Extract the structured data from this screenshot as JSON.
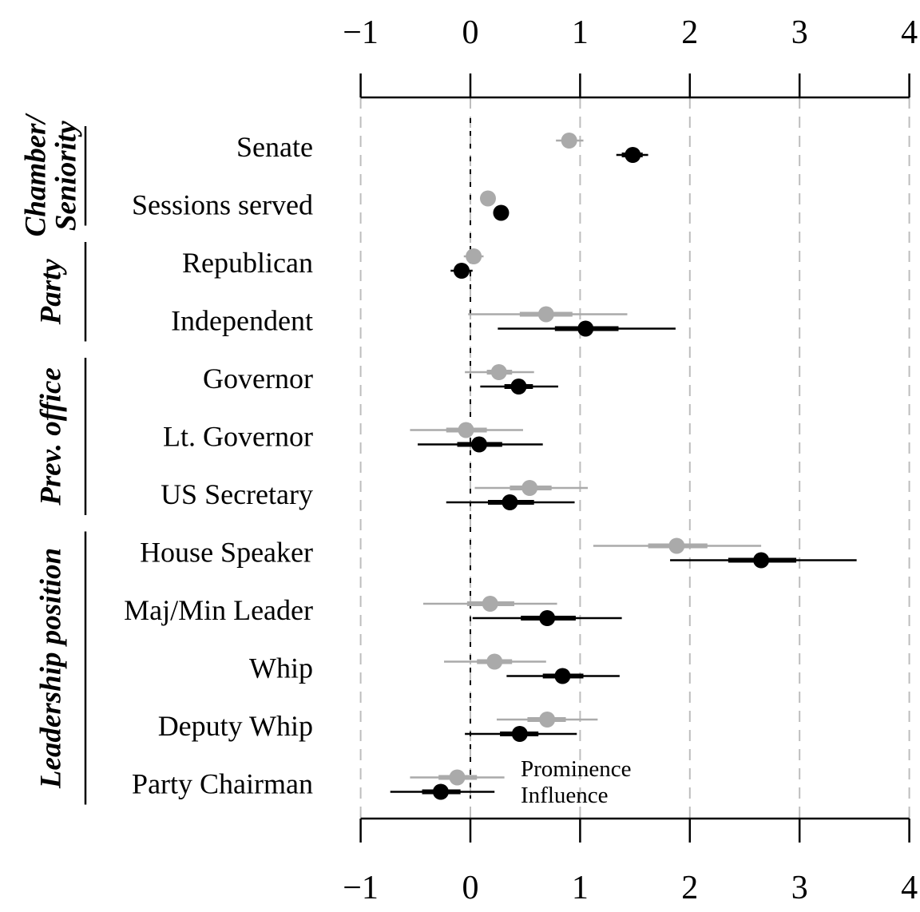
{
  "chart_data": {
    "type": "coefficient-plot",
    "xlim": [
      -1,
      4
    ],
    "xticks": [
      -1,
      0,
      1,
      2,
      3,
      4
    ],
    "xtick_labels": [
      "−1",
      "0",
      "1",
      "2",
      "3",
      "4"
    ],
    "grid": "vertical dashed at each tick",
    "legend_position": "bottom-right-of-last-row",
    "series": [
      {
        "name": "Prominence",
        "color": "#aaaaaa"
      },
      {
        "name": "Influence",
        "color": "#000000"
      }
    ],
    "groups": [
      {
        "label_lines": [
          "Chamber/",
          "Seniority"
        ],
        "rows": [
          0,
          1
        ]
      },
      {
        "label_lines": [
          "Party"
        ],
        "rows": [
          2,
          3
        ]
      },
      {
        "label_lines": [
          "Prev. office"
        ],
        "rows": [
          4,
          5,
          6
        ]
      },
      {
        "label_lines": [
          "Leadership position"
        ],
        "rows": [
          7,
          8,
          9,
          10,
          11
        ]
      }
    ],
    "rows": [
      {
        "label": "Senate",
        "prominence": {
          "est": 0.9,
          "ci50": [
            0.84,
            0.97
          ],
          "ci95": [
            0.78,
            1.03
          ]
        },
        "influence": {
          "est": 1.48,
          "ci50": [
            1.38,
            1.57
          ],
          "ci95": [
            1.33,
            1.62
          ]
        }
      },
      {
        "label": "Sessions served",
        "prominence": {
          "est": 0.16,
          "ci50": [
            0.14,
            0.18
          ],
          "ci95": [
            0.12,
            0.2
          ]
        },
        "influence": {
          "est": 0.28,
          "ci50": [
            0.26,
            0.3
          ],
          "ci95": [
            0.24,
            0.32
          ]
        }
      },
      {
        "label": "Republican",
        "prominence": {
          "est": 0.03,
          "ci50": [
            -0.02,
            0.08
          ],
          "ci95": [
            -0.06,
            0.12
          ]
        },
        "influence": {
          "est": -0.08,
          "ci50": [
            -0.13,
            -0.03
          ],
          "ci95": [
            -0.18,
            0.02
          ]
        }
      },
      {
        "label": "Independent",
        "prominence": {
          "est": 0.69,
          "ci50": [
            0.45,
            0.93
          ],
          "ci95": [
            -0.02,
            1.43
          ]
        },
        "influence": {
          "est": 1.05,
          "ci50": [
            0.77,
            1.35
          ],
          "ci95": [
            0.25,
            1.87
          ]
        }
      },
      {
        "label": "Governor",
        "prominence": {
          "est": 0.26,
          "ci50": [
            0.15,
            0.38
          ],
          "ci95": [
            -0.05,
            0.58
          ]
        },
        "influence": {
          "est": 0.44,
          "ci50": [
            0.31,
            0.57
          ],
          "ci95": [
            0.09,
            0.8
          ]
        }
      },
      {
        "label": "Lt. Governor",
        "prominence": {
          "est": -0.04,
          "ci50": [
            -0.22,
            0.15
          ],
          "ci95": [
            -0.55,
            0.48
          ]
        },
        "influence": {
          "est": 0.08,
          "ci50": [
            -0.12,
            0.29
          ],
          "ci95": [
            -0.48,
            0.66
          ]
        }
      },
      {
        "label": "US Secretary",
        "prominence": {
          "est": 0.54,
          "ci50": [
            0.36,
            0.74
          ],
          "ci95": [
            0.04,
            1.07
          ]
        },
        "influence": {
          "est": 0.36,
          "ci50": [
            0.16,
            0.58
          ],
          "ci95": [
            -0.22,
            0.95
          ]
        }
      },
      {
        "label": "House Speaker",
        "prominence": {
          "est": 1.88,
          "ci50": [
            1.62,
            2.16
          ],
          "ci95": [
            1.12,
            2.65
          ]
        },
        "influence": {
          "est": 2.65,
          "ci50": [
            2.35,
            2.97
          ],
          "ci95": [
            1.82,
            3.52
          ]
        }
      },
      {
        "label": "Maj/Min Leader",
        "prominence": {
          "est": 0.18,
          "ci50": [
            -0.03,
            0.4
          ],
          "ci95": [
            -0.43,
            0.79
          ]
        },
        "influence": {
          "est": 0.7,
          "ci50": [
            0.46,
            0.96
          ],
          "ci95": [
            0.02,
            1.38
          ]
        }
      },
      {
        "label": "Whip",
        "prominence": {
          "est": 0.22,
          "ci50": [
            0.06,
            0.38
          ],
          "ci95": [
            -0.24,
            0.69
          ]
        },
        "influence": {
          "est": 0.84,
          "ci50": [
            0.66,
            1.03
          ],
          "ci95": [
            0.33,
            1.36
          ]
        }
      },
      {
        "label": "Deputy Whip",
        "prominence": {
          "est": 0.7,
          "ci50": [
            0.52,
            0.87
          ],
          "ci95": [
            0.24,
            1.16
          ]
        },
        "influence": {
          "est": 0.45,
          "ci50": [
            0.27,
            0.62
          ],
          "ci95": [
            -0.05,
            0.97
          ]
        }
      },
      {
        "label": "Party Chairman",
        "prominence": {
          "est": -0.12,
          "ci50": [
            -0.29,
            0.06
          ],
          "ci95": [
            -0.55,
            0.31
          ]
        },
        "influence": {
          "est": -0.27,
          "ci50": [
            -0.44,
            -0.09
          ],
          "ci95": [
            -0.73,
            0.22
          ]
        }
      }
    ]
  }
}
